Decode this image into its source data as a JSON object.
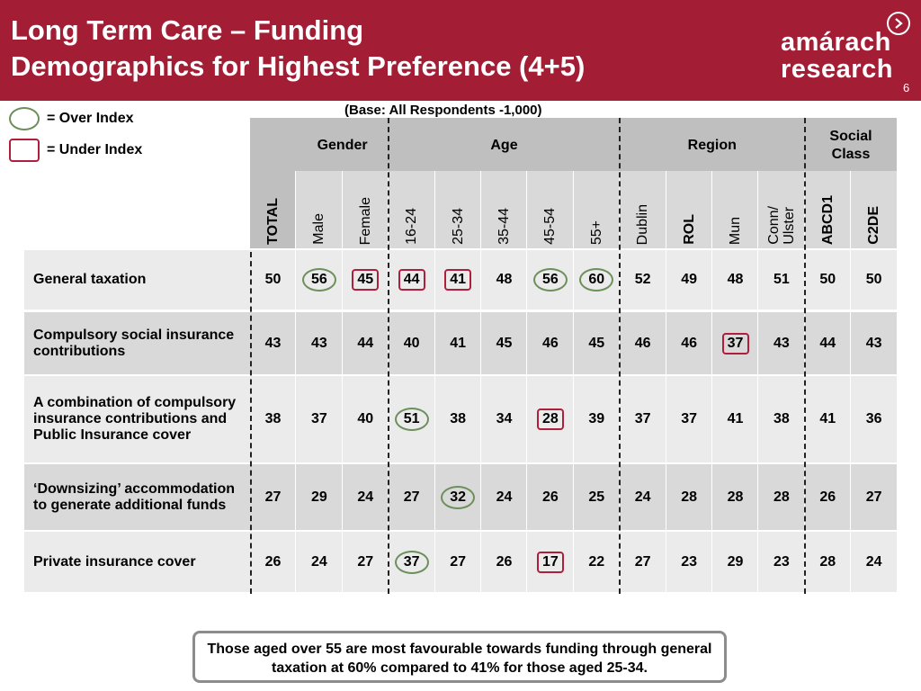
{
  "header": {
    "title_line1": "Long Term Care – Funding",
    "title_line2": "Demographics for Highest Preference (4+5)",
    "logo_line1": "amárach",
    "logo_line2": "research",
    "page_number": "6"
  },
  "base_note": "(Base:  All Respondents -1,000)",
  "legend": {
    "over_label": "= Over Index",
    "under_label": "= Under Index"
  },
  "table": {
    "groups": [
      {
        "label": "Gender"
      },
      {
        "label": "Age"
      },
      {
        "label": "Region"
      },
      {
        "label": "Social\nClass"
      }
    ],
    "columns": [
      "TOTAL",
      "Male",
      "Female",
      "16-24",
      "25-34",
      "35-44",
      "45-54",
      "55+",
      "Dublin",
      "ROL",
      "Mun",
      "Conn/\nUlster",
      "ABCD1",
      "C2DE"
    ],
    "rows": [
      {
        "label": "General taxation",
        "values": [
          "50",
          "56",
          "45",
          "44",
          "41",
          "48",
          "56",
          "60",
          "52",
          "49",
          "48",
          "51",
          "50",
          "50"
        ]
      },
      {
        "label": "Compulsory social insurance contributions",
        "values": [
          "43",
          "43",
          "44",
          "40",
          "41",
          "45",
          "46",
          "45",
          "46",
          "46",
          "37",
          "43",
          "44",
          "43"
        ]
      },
      {
        "label": "A combination of compulsory insurance contributions and Public Insurance cover",
        "values": [
          "38",
          "37",
          "40",
          "51",
          "38",
          "34",
          "28",
          "39",
          "37",
          "37",
          "41",
          "38",
          "41",
          "36"
        ]
      },
      {
        "label": "‘Downsizing’ accommodation to generate additional funds",
        "values": [
          "27",
          "29",
          "24",
          "27",
          "32",
          "24",
          "26",
          "25",
          "24",
          "28",
          "28",
          "28",
          "26",
          "27"
        ]
      },
      {
        "label": "Private insurance cover",
        "values": [
          "26",
          "24",
          "27",
          "37",
          "27",
          "26",
          "17",
          "22",
          "27",
          "23",
          "29",
          "23",
          "28",
          "24"
        ]
      }
    ],
    "over_index_cells": [
      [
        0,
        1
      ],
      [
        0,
        7
      ],
      [
        0,
        6
      ],
      [
        2,
        3
      ],
      [
        3,
        4
      ],
      [
        4,
        3
      ]
    ],
    "under_index_cells": [
      [
        0,
        2
      ],
      [
        0,
        3
      ],
      [
        0,
        4
      ],
      [
        1,
        10
      ],
      [
        2,
        6
      ],
      [
        4,
        6
      ]
    ]
  },
  "callout": "Those aged over 55 are most favourable towards funding through general taxation at 60% compared to 41% for those aged 25-34."
}
